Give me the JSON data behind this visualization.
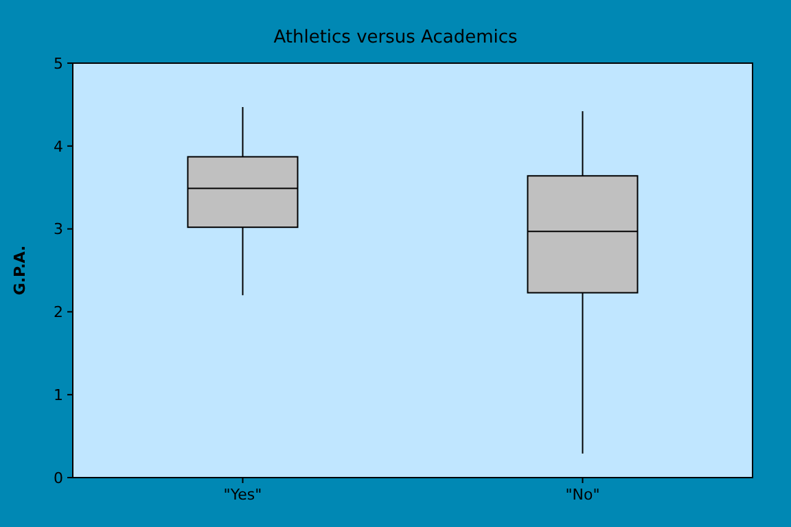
{
  "chart_data": {
    "type": "box",
    "title": "Athletics versus Academics",
    "ylabel": "G.P.A.",
    "categories": [
      "\"Yes\"",
      "\"No\""
    ],
    "boxes": [
      {
        "low": 2.2,
        "q1": 3.02,
        "median": 3.49,
        "q3": 3.87,
        "high": 4.47
      },
      {
        "low": 0.29,
        "q1": 2.23,
        "median": 2.97,
        "q3": 3.64,
        "high": 4.42
      }
    ],
    "color": "#c0c0c0",
    "ylim": [
      0,
      5
    ],
    "yticks": [
      0,
      1,
      2,
      3,
      4,
      5
    ],
    "grid": false
  }
}
